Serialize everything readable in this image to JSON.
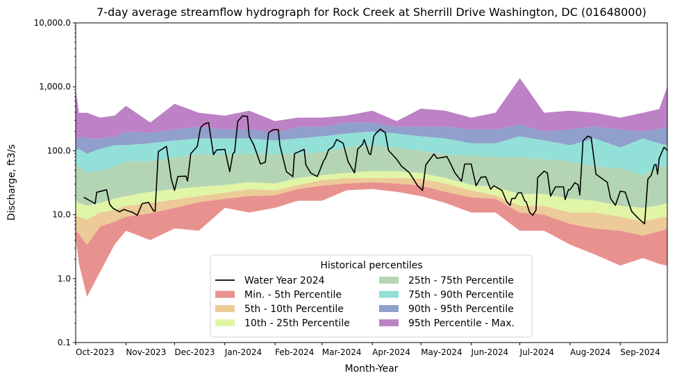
{
  "chart_data": {
    "type": "area",
    "title": "7-day average streamflow hydrograph for Rock Creek at Sherrill Drive Washington, DC (01648000)",
    "xlabel": "Month-Year",
    "ylabel": "Discharge, ft3/s",
    "y_scale": "log",
    "ylim": [
      0.1,
      10000
    ],
    "xlim": [
      "2023-10-01",
      "2024-09-30"
    ],
    "grid": false,
    "x_ticks": [
      {
        "date": "2023-10-01",
        "label": "Oct-2023"
      },
      {
        "date": "2023-11-01",
        "label": "Nov-2023"
      },
      {
        "date": "2023-12-01",
        "label": "Dec-2023"
      },
      {
        "date": "2024-01-01",
        "label": "Jan-2024"
      },
      {
        "date": "2024-02-01",
        "label": "Feb-2024"
      },
      {
        "date": "2024-03-01",
        "label": "Mar-2024"
      },
      {
        "date": "2024-04-01",
        "label": "Apr-2024"
      },
      {
        "date": "2024-05-01",
        "label": "May-2024"
      },
      {
        "date": "2024-06-01",
        "label": "Jun-2024"
      },
      {
        "date": "2024-07-01",
        "label": "Jul-2024"
      },
      {
        "date": "2024-08-01",
        "label": "Aug-2024"
      },
      {
        "date": "2024-09-01",
        "label": "Sep-2024"
      }
    ],
    "y_ticks": [
      {
        "value": 10000,
        "label": "10,000.0"
      },
      {
        "value": 1000,
        "label": "1,000.0"
      },
      {
        "value": 100,
        "label": "100.0"
      },
      {
        "value": 10,
        "label": "10.0"
      },
      {
        "value": 1,
        "label": "1.0"
      },
      {
        "value": 0.1,
        "label": "0.1"
      }
    ],
    "legend": {
      "title": "Historical percentiles",
      "placement": "bottom-center",
      "entries": [
        {
          "label": "Water Year 2024",
          "kind": "line",
          "color": "#000000"
        },
        {
          "label": "Min. - 5th Percentile",
          "kind": "band",
          "color": "#e8928f"
        },
        {
          "label": "5th - 10th Percentile",
          "kind": "band",
          "color": "#eccb98"
        },
        {
          "label": "10th - 25th Percentile",
          "kind": "band",
          "color": "#e1f5a7"
        },
        {
          "label": "25th - 75th Percentile",
          "kind": "band",
          "color": "#b4d5b4"
        },
        {
          "label": "75th - 90th Percentile",
          "kind": "band",
          "color": "#93e0d8"
        },
        {
          "label": "90th - 95th Percentile",
          "kind": "band",
          "color": "#909fcb"
        },
        {
          "label": "95th Percentile - Max.",
          "kind": "band",
          "color": "#bd81c6"
        }
      ]
    },
    "percentiles": {
      "dates": [
        "2023-10-01",
        "2023-10-03",
        "2023-10-08",
        "2023-10-16",
        "2023-10-25",
        "2023-11-01",
        "2023-11-16",
        "2023-12-01",
        "2023-12-16",
        "2024-01-01",
        "2024-01-16",
        "2024-02-01",
        "2024-02-15",
        "2024-03-01",
        "2024-03-16",
        "2024-04-01",
        "2024-04-16",
        "2024-05-01",
        "2024-05-16",
        "2024-06-01",
        "2024-06-16",
        "2024-07-01",
        "2024-07-16",
        "2024-08-01",
        "2024-08-16",
        "2024-09-01",
        "2024-09-15",
        "2024-09-25",
        "2024-09-30"
      ],
      "max": [
        890,
        393,
        393,
        330,
        355,
        505,
        277,
        543,
        393,
        355,
        424,
        291,
        330,
        330,
        355,
        424,
        291,
        456,
        424,
        330,
        393,
        1370,
        393,
        424,
        393,
        330,
        393,
        450,
        1000
      ],
      "p95": [
        156,
        164,
        156,
        156,
        164,
        200,
        191,
        216,
        238,
        216,
        216,
        191,
        238,
        238,
        277,
        277,
        238,
        238,
        238,
        216,
        216,
        257,
        200,
        216,
        238,
        216,
        200,
        220,
        238
      ],
      "p90": [
        100,
        107,
        90,
        107,
        122,
        122,
        131,
        145,
        156,
        156,
        156,
        145,
        156,
        168,
        186,
        200,
        186,
        168,
        156,
        131,
        131,
        168,
        145,
        122,
        156,
        113,
        156,
        130,
        122
      ],
      "p75": [
        57,
        57,
        45,
        48,
        57,
        68,
        68,
        79,
        88,
        88,
        90,
        88,
        90,
        95,
        113,
        122,
        113,
        99,
        88,
        84,
        79,
        79,
        74,
        68,
        57,
        53,
        41.5,
        55,
        57
      ],
      "p25": [
        16.5,
        15.3,
        13.8,
        15.3,
        17.8,
        19.6,
        22.8,
        25.2,
        27.2,
        29.2,
        32.3,
        30.8,
        37.6,
        41.5,
        45,
        48,
        48,
        45,
        37.6,
        29.2,
        27.2,
        21.1,
        21.1,
        17.8,
        16.5,
        13.8,
        12.8,
        14,
        15.3
      ],
      "p10": [
        9.3,
        9.3,
        8.4,
        10.8,
        11.9,
        13.8,
        15.3,
        17.3,
        19.6,
        22.2,
        25.2,
        24,
        29.2,
        34.9,
        37.6,
        37.6,
        37.6,
        36.6,
        30.8,
        24,
        20.1,
        13.8,
        13.8,
        10.8,
        10.8,
        9.3,
        7.8,
        9,
        9.3
      ],
      "p5": [
        5.6,
        5.0,
        3.4,
        6.5,
        7.8,
        9.3,
        10.5,
        12.8,
        15.7,
        17.8,
        19.6,
        20.1,
        25.2,
        28.6,
        30.8,
        32.3,
        30.8,
        28.6,
        22.8,
        18.7,
        17.8,
        10.8,
        10,
        7.2,
        6.1,
        5.6,
        4.7,
        5.5,
        6.1
      ],
      "min": [
        4.4,
        1.7,
        0.52,
        1.26,
        3.4,
        5.6,
        4.0,
        6.1,
        5.6,
        12.8,
        10.8,
        12.8,
        16.5,
        16.5,
        24,
        25.2,
        22.8,
        19.6,
        15.3,
        10.8,
        10.8,
        5.6,
        5.6,
        3.4,
        2.4,
        1.6,
        2.1,
        1.7,
        1.6
      ]
    },
    "series": [
      {
        "name": "Water Year 2024",
        "dates": [
          "2023-10-06",
          "2023-10-13",
          "2023-10-14",
          "2023-10-20",
          "2023-10-22",
          "2023-10-24",
          "2023-10-28",
          "2023-10-31",
          "2023-11-02",
          "2023-11-05",
          "2023-11-08",
          "2023-11-11",
          "2023-11-15",
          "2023-11-18",
          "2023-11-19",
          "2023-11-21",
          "2023-11-26",
          "2023-11-29",
          "2023-12-01",
          "2023-12-03",
          "2023-12-08",
          "2023-12-09",
          "2023-12-11",
          "2023-12-15",
          "2023-12-17",
          "2023-12-19",
          "2023-12-22",
          "2023-12-25",
          "2023-12-27",
          "2024-01-01",
          "2024-01-04",
          "2024-01-06",
          "2024-01-07",
          "2024-01-09",
          "2024-01-12",
          "2024-01-15",
          "2024-01-16",
          "2024-01-19",
          "2024-01-23",
          "2024-01-26",
          "2024-01-28",
          "2024-01-31",
          "2024-02-03",
          "2024-02-04",
          "2024-02-08",
          "2024-02-12",
          "2024-02-13",
          "2024-02-19",
          "2024-02-20",
          "2024-02-23",
          "2024-02-27",
          "2024-02-28",
          "2024-03-02",
          "2024-03-03",
          "2024-03-05",
          "2024-03-08",
          "2024-03-10",
          "2024-03-14",
          "2024-03-17",
          "2024-03-21",
          "2024-03-23",
          "2024-03-26",
          "2024-03-27",
          "2024-03-30",
          "2024-03-31",
          "2024-04-02",
          "2024-04-03",
          "2024-04-06",
          "2024-04-09",
          "2024-04-11",
          "2024-04-16",
          "2024-04-19",
          "2024-04-24",
          "2024-04-29",
          "2024-05-02",
          "2024-05-04",
          "2024-05-09",
          "2024-05-11",
          "2024-05-17",
          "2024-05-19",
          "2024-05-22",
          "2024-05-26",
          "2024-05-28",
          "2024-06-01",
          "2024-06-04",
          "2024-06-07",
          "2024-06-10",
          "2024-06-13",
          "2024-06-15",
          "2024-06-20",
          "2024-06-23",
          "2024-06-25",
          "2024-06-26",
          "2024-06-28",
          "2024-06-30",
          "2024-07-02",
          "2024-07-04",
          "2024-07-05",
          "2024-07-07",
          "2024-07-09",
          "2024-07-11",
          "2024-07-12",
          "2024-07-16",
          "2024-07-18",
          "2024-07-20",
          "2024-07-23",
          "2024-07-28",
          "2024-07-29",
          "2024-07-31",
          "2024-08-01",
          "2024-08-04",
          "2024-08-06",
          "2024-08-07",
          "2024-08-09",
          "2024-08-12",
          "2024-08-14",
          "2024-08-17",
          "2024-08-19",
          "2024-08-24",
          "2024-08-26",
          "2024-08-29",
          "2024-09-01",
          "2024-09-04",
          "2024-09-08",
          "2024-09-12",
          "2024-09-16",
          "2024-09-18",
          "2024-09-20",
          "2024-09-22",
          "2024-09-23",
          "2024-09-24",
          "2024-09-25",
          "2024-09-28",
          "2024-09-30"
        ],
        "values": [
          18.7,
          14.9,
          22.4,
          24.5,
          14.5,
          12.6,
          11.1,
          12.1,
          11.5,
          10.9,
          9.8,
          14.9,
          15.6,
          11.5,
          11.3,
          97,
          117,
          36,
          24,
          39.5,
          40,
          33.5,
          90,
          117,
          227,
          260,
          275,
          87,
          103,
          105,
          47,
          90,
          95,
          290,
          350,
          345,
          170,
          121,
          62,
          66,
          192,
          214,
          214,
          121,
          47,
          39.5,
          90,
          105,
          60,
          45,
          39.5,
          45,
          70,
          76,
          103,
          117,
          150,
          131,
          68,
          45,
          106,
          126,
          150,
          90,
          87,
          170,
          184,
          218,
          192,
          101,
          74,
          57.5,
          45,
          28.3,
          24,
          60,
          89,
          76,
          81,
          65,
          45,
          33.5,
          62,
          62,
          28.3,
          38.5,
          39,
          25,
          28.3,
          24,
          15.8,
          14,
          17.9,
          17.9,
          22,
          22,
          16.5,
          15.8,
          10.9,
          9.8,
          11.8,
          38,
          48,
          45,
          19.5,
          27.2,
          27.2,
          17.2,
          24.6,
          24.6,
          31.6,
          29.5,
          20.3,
          143,
          170,
          162,
          43,
          39.5,
          32,
          17.9,
          14,
          23.4,
          22.6,
          11.3,
          8.8,
          7.2,
          36,
          41,
          60,
          61,
          43,
          76,
          114,
          101
        ]
      }
    ]
  }
}
